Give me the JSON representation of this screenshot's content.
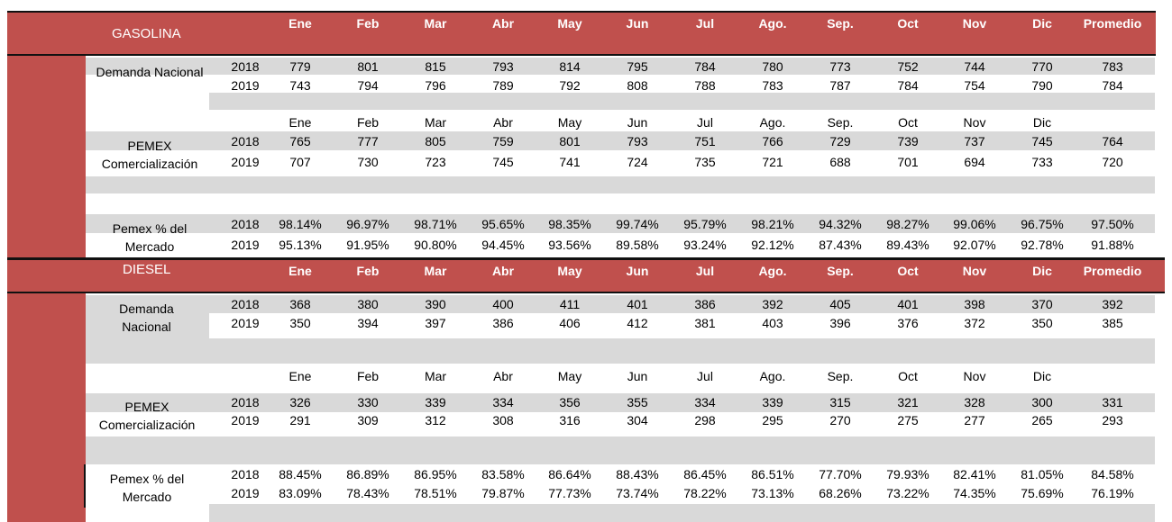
{
  "months": [
    "Ene",
    "Feb",
    "Mar",
    "Abr",
    "May",
    "Jun",
    "Jul",
    "Ago.",
    "Sep.",
    "Oct",
    "Nov",
    "Dic"
  ],
  "avg_label": "Promedio",
  "gasolina": {
    "title": "GASOLINA",
    "demanda": {
      "label": "Demanda Nacional",
      "rows": [
        {
          "year": "2018",
          "values": [
            "779",
            "801",
            "815",
            "793",
            "814",
            "795",
            "784",
            "780",
            "773",
            "752",
            "744",
            "770"
          ],
          "avg": "783"
        },
        {
          "year": "2019",
          "values": [
            "743",
            "794",
            "796",
            "789",
            "792",
            "808",
            "788",
            "783",
            "787",
            "784",
            "754",
            "790"
          ],
          "avg": "784"
        }
      ]
    },
    "pemex": {
      "label_1": "PEMEX",
      "label_2": "Comercialización",
      "rows": [
        {
          "year": "2018",
          "values": [
            "765",
            "777",
            "805",
            "759",
            "801",
            "793",
            "751",
            "766",
            "729",
            "739",
            "737",
            "745"
          ],
          "avg": "764"
        },
        {
          "year": "2019",
          "values": [
            "707",
            "730",
            "723",
            "745",
            "741",
            "724",
            "735",
            "721",
            "688",
            "701",
            "694",
            "733"
          ],
          "avg": "720"
        }
      ]
    },
    "pct": {
      "label_1": "Pemex % del",
      "label_2": "Mercado",
      "rows": [
        {
          "year": "2018",
          "values": [
            "98.14%",
            "96.97%",
            "98.71%",
            "95.65%",
            "98.35%",
            "99.74%",
            "95.79%",
            "98.21%",
            "94.32%",
            "98.27%",
            "99.06%",
            "96.75%"
          ],
          "avg": "97.50%"
        },
        {
          "year": "2019",
          "values": [
            "95.13%",
            "91.95%",
            "90.80%",
            "94.45%",
            "93.56%",
            "89.58%",
            "93.24%",
            "92.12%",
            "87.43%",
            "89.43%",
            "92.07%",
            "92.78%"
          ],
          "avg": "91.88%"
        }
      ]
    }
  },
  "diesel": {
    "title": "DIESEL",
    "demanda": {
      "label_1": "Demanda",
      "label_2": "Nacional",
      "rows": [
        {
          "year": "2018",
          "values": [
            "368",
            "380",
            "390",
            "400",
            "411",
            "401",
            "386",
            "392",
            "405",
            "401",
            "398",
            "370"
          ],
          "avg": "392"
        },
        {
          "year": "2019",
          "values": [
            "350",
            "394",
            "397",
            "386",
            "406",
            "412",
            "381",
            "403",
            "396",
            "376",
            "372",
            "350"
          ],
          "avg": "385"
        }
      ]
    },
    "pemex": {
      "label_1": "PEMEX",
      "label_2": "Comercialización",
      "rows": [
        {
          "year": "2018",
          "values": [
            "326",
            "330",
            "339",
            "334",
            "356",
            "355",
            "334",
            "339",
            "315",
            "321",
            "328",
            "300"
          ],
          "avg": "331"
        },
        {
          "year": "2019",
          "values": [
            "291",
            "309",
            "312",
            "308",
            "316",
            "304",
            "298",
            "295",
            "270",
            "275",
            "277",
            "265"
          ],
          "avg": "293"
        }
      ]
    },
    "pct": {
      "label_1": "Pemex % del",
      "label_2": "Mercado",
      "rows": [
        {
          "year": "2018",
          "values": [
            "88.45%",
            "86.89%",
            "86.95%",
            "83.58%",
            "86.64%",
            "88.43%",
            "86.45%",
            "86.51%",
            "77.70%",
            "79.93%",
            "82.41%",
            "81.05%"
          ],
          "avg": "84.58%"
        },
        {
          "year": "2019",
          "values": [
            "83.09%",
            "78.43%",
            "78.51%",
            "79.87%",
            "77.73%",
            "73.74%",
            "78.22%",
            "73.13%",
            "68.26%",
            "73.22%",
            "74.35%",
            "75.69%"
          ],
          "avg": "76.19%"
        }
      ]
    }
  }
}
